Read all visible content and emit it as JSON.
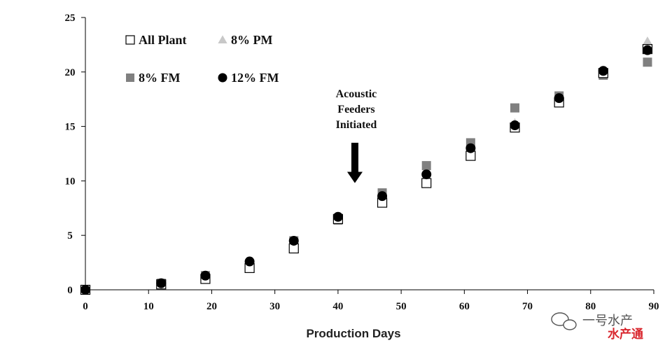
{
  "chart_data": {
    "type": "scatter",
    "title": "",
    "xlabel": "Production Days",
    "ylabel": "",
    "xlim": [
      0,
      90
    ],
    "ylim": [
      0,
      25
    ],
    "xticks": [
      0,
      10,
      20,
      30,
      40,
      50,
      60,
      70,
      80,
      90
    ],
    "yticks": [
      0,
      5,
      10,
      15,
      20,
      25
    ],
    "grid": false,
    "legend_position": "top-left",
    "series": [
      {
        "name": "All Plant",
        "marker": "hollow-square",
        "color": "#000000",
        "x": [
          0,
          12,
          19,
          26,
          33,
          40,
          47,
          54,
          61,
          68,
          75,
          82,
          89
        ],
        "y": [
          0,
          0.5,
          1.0,
          2.0,
          3.8,
          6.5,
          8.0,
          9.8,
          12.3,
          14.9,
          17.2,
          19.9,
          22.1
        ]
      },
      {
        "name": "8% PM",
        "marker": "triangle",
        "color": "#c8c8c8",
        "x": [
          0,
          12,
          19,
          26,
          33,
          40,
          47,
          54,
          61,
          68,
          75,
          82,
          89
        ],
        "y": [
          0,
          0.6,
          1.2,
          2.1,
          4.2,
          6.6,
          8.5,
          11.0,
          13.0,
          15.3,
          17.5,
          20.0,
          22.8
        ]
      },
      {
        "name": "8% FM",
        "marker": "filled-square",
        "color": "#808080",
        "x": [
          0,
          12,
          19,
          26,
          33,
          40,
          47,
          54,
          61,
          68,
          75,
          82,
          89
        ],
        "y": [
          0,
          0.6,
          1.3,
          2.0,
          4.5,
          6.4,
          8.9,
          11.4,
          13.5,
          16.7,
          17.8,
          19.7,
          20.9
        ]
      },
      {
        "name": "12% FM",
        "marker": "filled-circle",
        "color": "#000000",
        "x": [
          0,
          12,
          19,
          26,
          33,
          40,
          47,
          54,
          61,
          68,
          75,
          82,
          89
        ],
        "y": [
          0,
          0.6,
          1.3,
          2.6,
          4.5,
          6.7,
          8.6,
          10.6,
          13.0,
          15.1,
          17.6,
          20.1,
          22.0
        ]
      }
    ],
    "annotations": [
      {
        "text_lines": [
          "Acoustic",
          "Feeders",
          "Initiated"
        ],
        "arrow_x": 43,
        "arrow_y_from": 13.5,
        "arrow_y_to": 9.8
      }
    ]
  },
  "watermark": {
    "text": "一号水产",
    "subtext": "水产通",
    "icon": "wechat-icon"
  }
}
